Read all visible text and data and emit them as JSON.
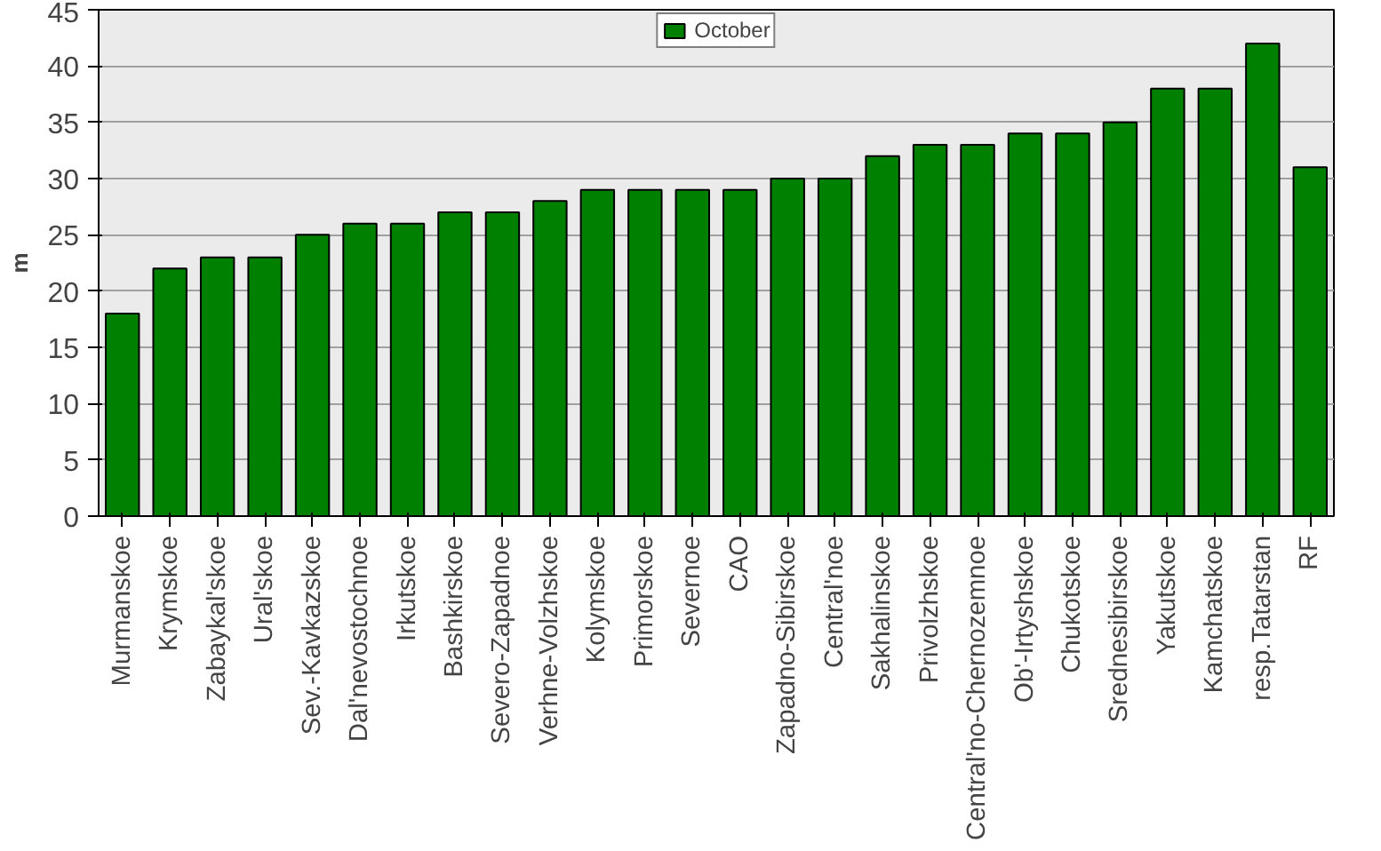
{
  "chart_data": {
    "type": "bar",
    "ylabel": "m",
    "categories": [
      "Murmanskoe",
      "Krymskoe",
      "Zabaykal'skoe",
      "Ural'skoe",
      "Sev.-Kavkazskoe",
      "Dal'nevostochnoe",
      "Irkutskoe",
      "Bashkirskoe",
      "Severo-Zapadnoe",
      "Verhne-Volzhskoe",
      "Kolymskoe",
      "Primorskoe",
      "Severnoe",
      "CAO",
      "Zapadno-Sibirskoe",
      "Central'noe",
      "Sakhalinskoe",
      "Privolzhskoe",
      "Central'no-Chernozemnoe",
      "Ob'-Irtyshskoe",
      "Chukotskoe",
      "Srednesibirskoe",
      "Yakutskoe",
      "Kamchatskoe",
      "resp.Tatarstan",
      "RF"
    ],
    "series": [
      {
        "name": "October",
        "color": "#008000",
        "values": [
          18,
          22,
          23,
          23,
          25,
          26,
          26,
          27,
          27,
          28,
          29,
          29,
          29,
          29,
          30,
          30,
          32,
          33,
          33,
          34,
          34,
          35,
          38,
          38,
          42,
          31
        ]
      }
    ],
    "ylim": [
      0,
      45
    ],
    "yticks": [
      0,
      5,
      10,
      15,
      20,
      25,
      30,
      35,
      40,
      45
    ],
    "grid": "y",
    "legend": "top"
  }
}
